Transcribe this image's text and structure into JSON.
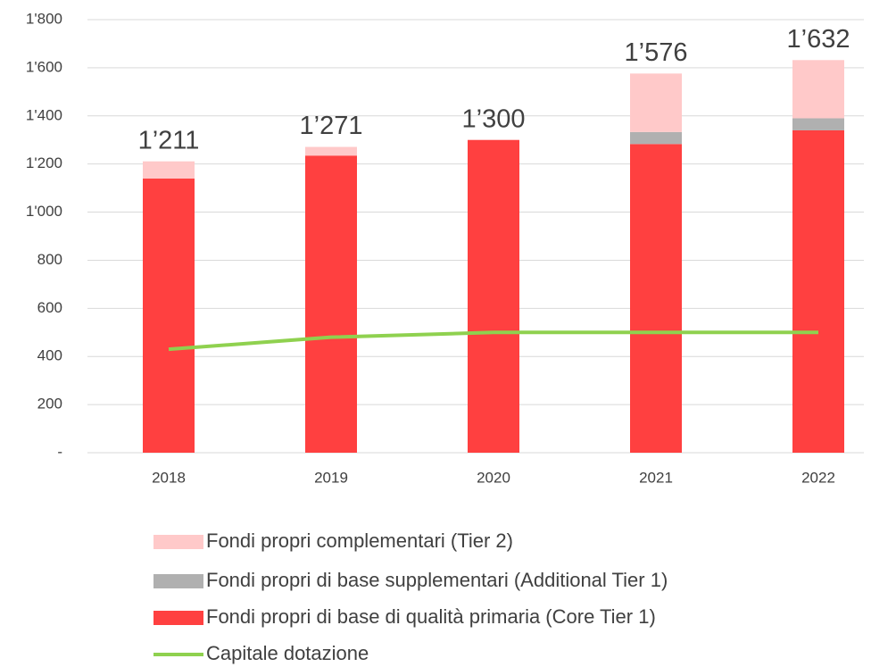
{
  "chart_data": {
    "type": "bar",
    "stacked": true,
    "categories": [
      "2018",
      "2019",
      "2020",
      "2021",
      "2022"
    ],
    "series": [
      {
        "name": "Fondi propri di base di qualità primaria (Core Tier 1)",
        "color": "#ff4040",
        "values": [
          1140,
          1235,
          1300,
          1283,
          1340
        ]
      },
      {
        "name": "Fondi propri di base supplementari (Additional Tier 1)",
        "color": "#b0b0b0",
        "values": [
          0,
          0,
          0,
          50,
          50
        ]
      },
      {
        "name": "Fondi propri complementari (Tier 2)",
        "color": "#ffc9c9",
        "values": [
          71,
          36,
          0,
          243,
          242
        ]
      },
      {
        "name": "Capitale dotazione",
        "color": "#8fd14f",
        "type": "line",
        "values": [
          430,
          480,
          500,
          500,
          500
        ]
      }
    ],
    "total_labels": [
      "1’211",
      "1’271",
      "1’300",
      "1’576",
      "1’632"
    ],
    "ylim": [
      0,
      1800
    ],
    "yticks": [
      {
        "value": 0,
        "label": "-"
      },
      200,
      400,
      600,
      800,
      {
        "value": 1000,
        "label": "1'000"
      },
      {
        "value": 1200,
        "label": "1'200"
      },
      {
        "value": 1400,
        "label": "1'400"
      },
      {
        "value": 1600,
        "label": "1'600"
      },
      {
        "value": 1800,
        "label": "1'800"
      }
    ],
    "grid": true,
    "legend": "bottom"
  }
}
